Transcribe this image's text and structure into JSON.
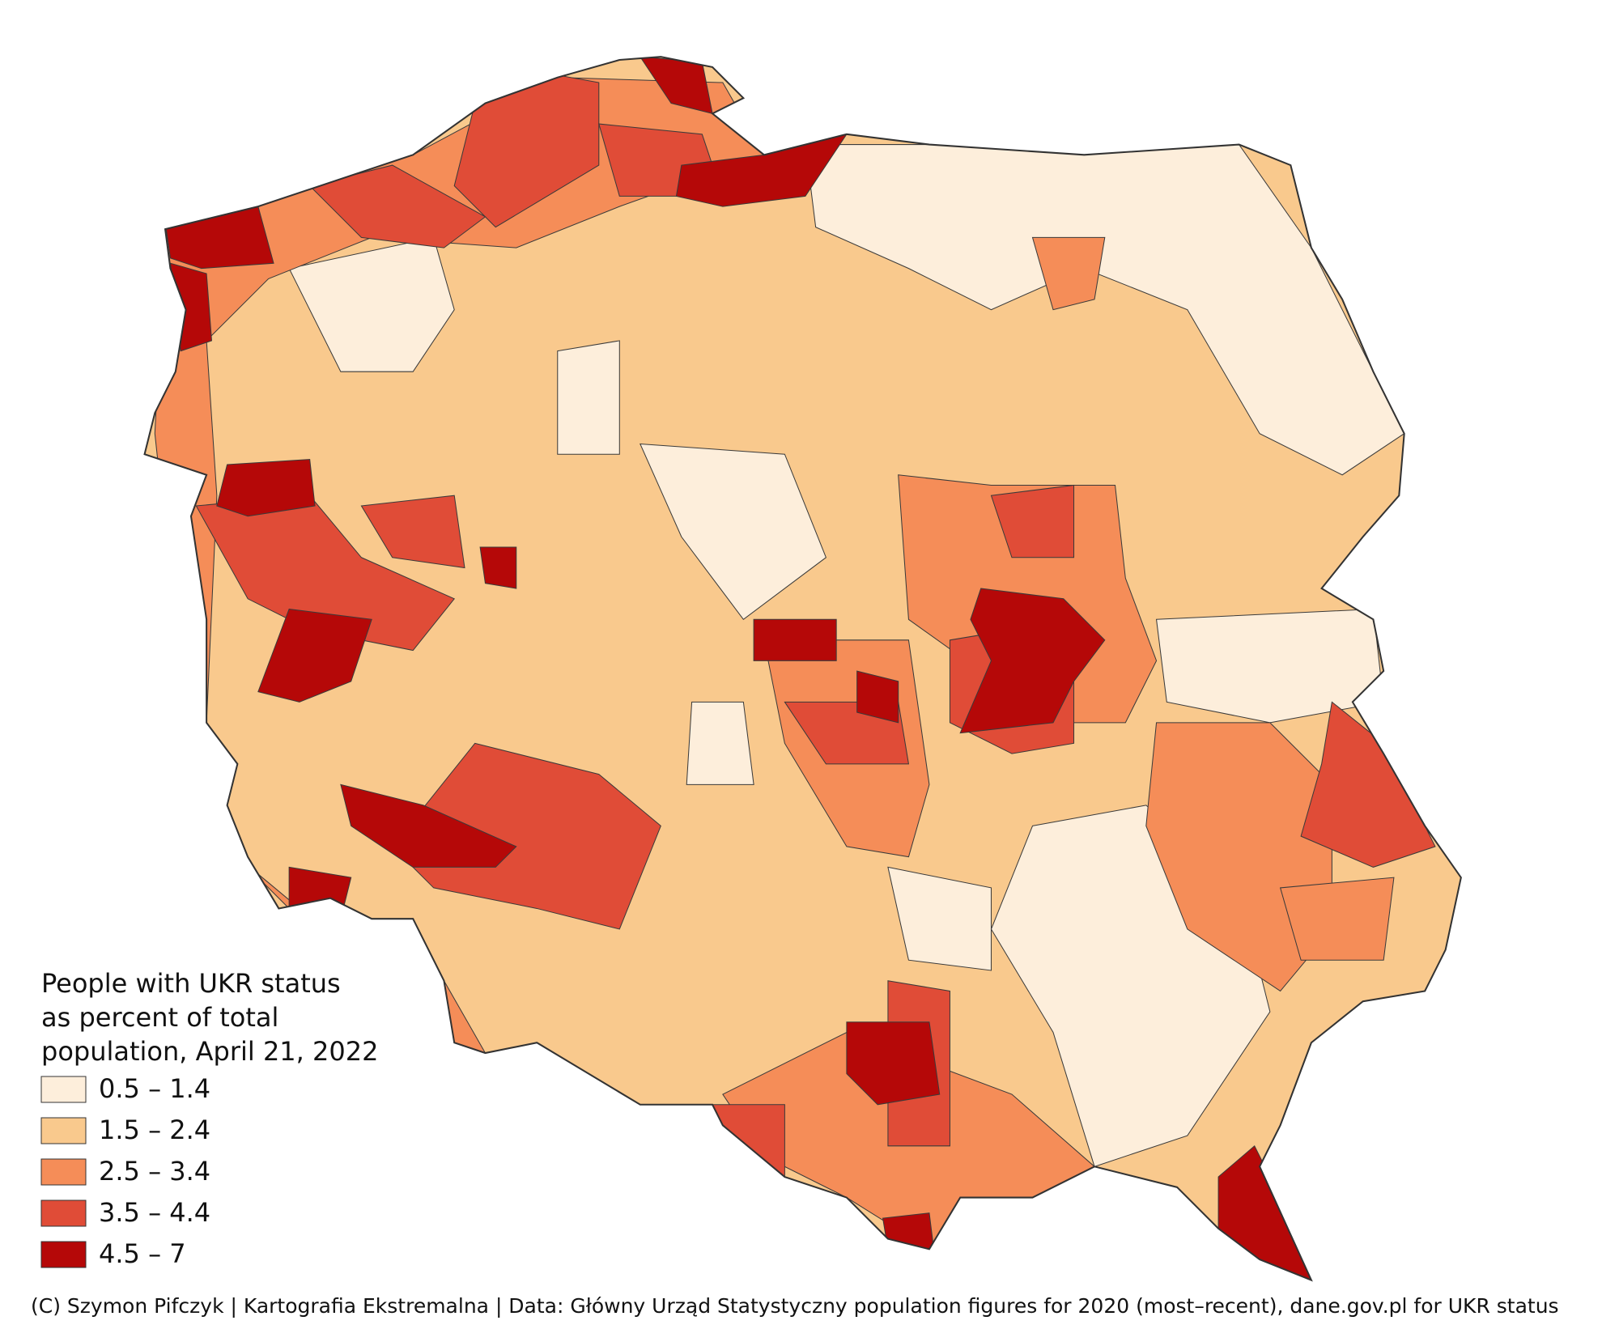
{
  "map": {
    "legend": {
      "title": [
        "People with UKR status",
        "as percent of total",
        "population,  April 21,  2022"
      ],
      "items": [
        {
          "label": "0.5 – 1.4",
          "color": "#fdeedb"
        },
        {
          "label": "1.5 – 2.4",
          "color": "#f9c98d"
        },
        {
          "label": "2.5 – 3.4",
          "color": "#f58d58"
        },
        {
          "label": "3.5 – 4.4",
          "color": "#e04c37"
        },
        {
          "label": "4.5 – 7",
          "color": "#b50808"
        }
      ]
    },
    "credit": "(C) Szymon Pifczyk | Kartografia Ekstremalna | Data: Główny Urząd Statystyczny population figures for 2020 (most–recent), dane.gov.pl for UKR status"
  }
}
